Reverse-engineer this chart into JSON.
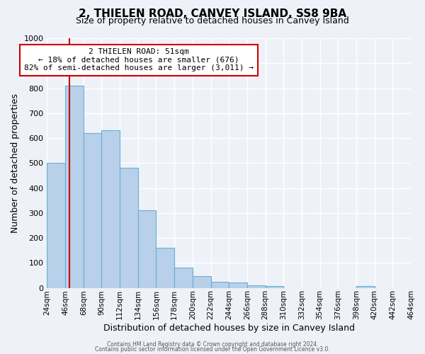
{
  "title": "2, THIELEN ROAD, CANVEY ISLAND, SS8 9BA",
  "subtitle": "Size of property relative to detached houses in Canvey Island",
  "xlabel": "Distribution of detached houses by size in Canvey Island",
  "ylabel": "Number of detached properties",
  "bin_edges": [
    24,
    46,
    68,
    90,
    112,
    134,
    156,
    178,
    200,
    222,
    244,
    266,
    288,
    310,
    332,
    354,
    376,
    398,
    420,
    442,
    464
  ],
  "bin_labels": [
    "24sqm",
    "46sqm",
    "68sqm",
    "90sqm",
    "112sqm",
    "134sqm",
    "156sqm",
    "178sqm",
    "200sqm",
    "222sqm",
    "244sqm",
    "266sqm",
    "288sqm",
    "310sqm",
    "332sqm",
    "354sqm",
    "376sqm",
    "398sqm",
    "420sqm",
    "442sqm",
    "464sqm"
  ],
  "counts": [
    500,
    810,
    620,
    630,
    480,
    310,
    160,
    80,
    48,
    25,
    20,
    10,
    8,
    0,
    0,
    0,
    0,
    8,
    0,
    0
  ],
  "bar_color": "#b8d0ea",
  "bar_edge_color": "#6aaed6",
  "vline_x": 51,
  "vline_color": "#cc0000",
  "annotation_text": "2 THIELEN ROAD: 51sqm\n← 18% of detached houses are smaller (676)\n82% of semi-detached houses are larger (3,011) →",
  "annotation_box_color": "#ffffff",
  "annotation_box_edge": "#cc0000",
  "ylim": [
    0,
    1000
  ],
  "yticks": [
    0,
    100,
    200,
    300,
    400,
    500,
    600,
    700,
    800,
    900,
    1000
  ],
  "footer1": "Contains HM Land Registry data © Crown copyright and database right 2024.",
  "footer2": "Contains public sector information licensed under the Open Government Licence v3.0.",
  "bg_color": "#eef2f8",
  "grid_color": "#ffffff",
  "title_fontsize": 11,
  "subtitle_fontsize": 9,
  "xlabel_fontsize": 9,
  "ylabel_fontsize": 9,
  "tick_fontsize": 7.5,
  "ytick_fontsize": 8,
  "annotation_fontsize": 8
}
